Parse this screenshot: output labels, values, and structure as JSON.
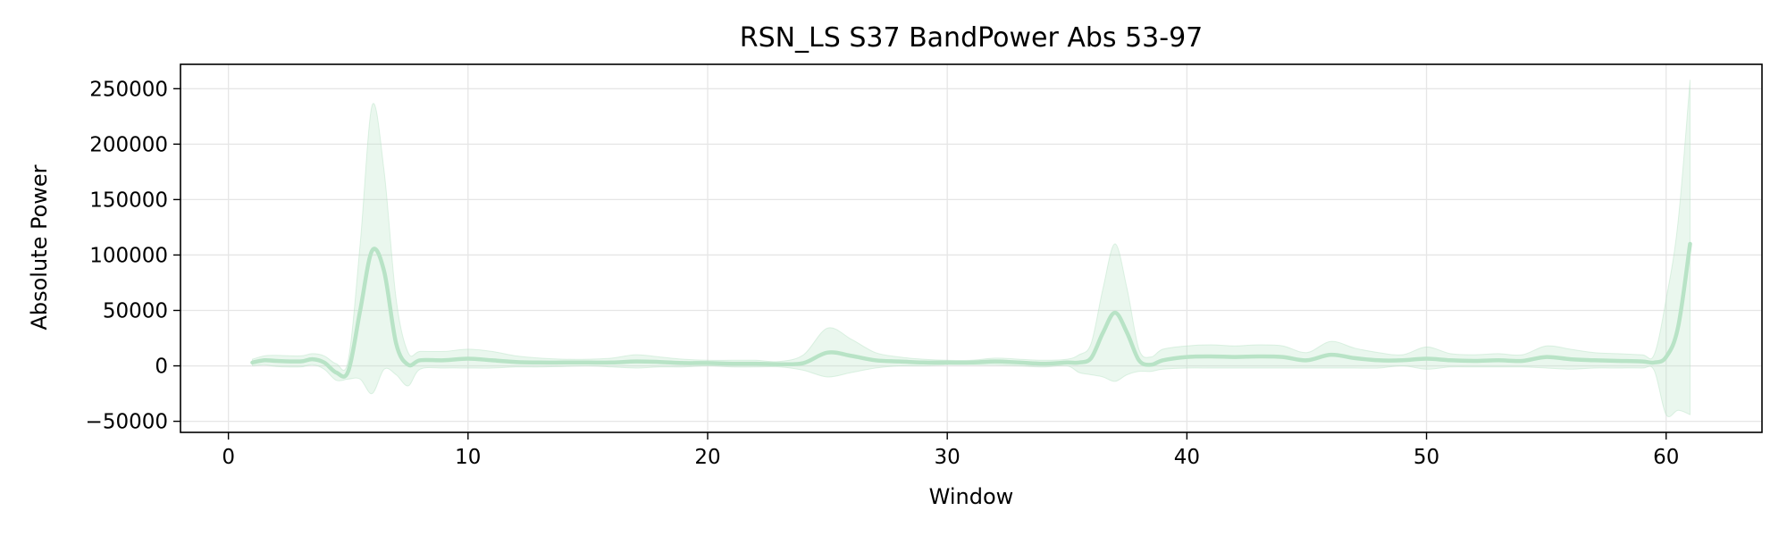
{
  "chart_data": {
    "type": "line",
    "title": "RSN_LS S37 BandPower Abs 53-97",
    "xlabel": "Window",
    "ylabel": "Absolute Power",
    "xlim": [
      -2,
      64
    ],
    "ylim": [
      -60000,
      272000
    ],
    "xticks": [
      0,
      10,
      20,
      30,
      40,
      50,
      60
    ],
    "xtick_labels": [
      "0",
      "10",
      "20",
      "30",
      "40",
      "50",
      "60"
    ],
    "yticks": [
      -50000,
      0,
      50000,
      100000,
      150000,
      200000,
      250000
    ],
    "ytick_labels": [
      "−50000",
      "0",
      "50000",
      "100000",
      "150000",
      "200000",
      "250000"
    ],
    "grid": true,
    "legend": false,
    "series": [
      {
        "color": "#b8e3c6",
        "band_color": "#b8e3c6",
        "x": [
          1,
          1.5,
          2,
          3,
          3.5,
          4,
          4.5,
          5,
          5.5,
          6,
          6.5,
          7,
          7.5,
          8,
          9,
          10,
          11,
          12,
          13,
          14,
          15,
          16,
          17,
          18,
          19,
          20,
          21,
          22,
          23,
          24,
          25,
          26,
          27,
          28,
          29,
          30,
          31,
          32,
          33,
          34,
          35,
          35.5,
          36,
          36.5,
          37,
          37.5,
          38,
          38.5,
          39,
          40,
          41,
          42,
          43,
          44,
          45,
          46,
          47,
          48,
          49,
          50,
          51,
          52,
          53,
          54,
          55,
          56,
          57,
          58,
          59,
          59.5,
          60,
          60.5,
          61
        ],
        "mean": [
          3000,
          5000,
          4500,
          4000,
          6000,
          3000,
          -6000,
          -5000,
          50000,
          104000,
          85000,
          20000,
          1000,
          5000,
          5000,
          6500,
          5000,
          3500,
          3000,
          3000,
          3000,
          3000,
          4000,
          3500,
          2500,
          2500,
          2000,
          2000,
          1500,
          2500,
          12000,
          9000,
          5000,
          4000,
          3000,
          3000,
          3000,
          4000,
          3000,
          2000,
          3000,
          3000,
          7000,
          30000,
          48000,
          30000,
          5000,
          1000,
          5000,
          8000,
          8500,
          8000,
          8500,
          8000,
          5000,
          10000,
          7000,
          5000,
          5000,
          6500,
          5000,
          4500,
          5000,
          4500,
          8000,
          6000,
          5000,
          4500,
          4000,
          3000,
          8000,
          35000,
          110000
        ],
        "upper": [
          6000,
          9000,
          9500,
          9000,
          11000,
          9000,
          2000,
          5000,
          110000,
          235000,
          175000,
          60000,
          12000,
          13000,
          13000,
          15000,
          13000,
          9000,
          7000,
          6000,
          6000,
          7000,
          10000,
          8000,
          6000,
          5000,
          5000,
          5000,
          4000,
          10000,
          34000,
          24000,
          12000,
          8000,
          6000,
          5000,
          5000,
          7000,
          6000,
          5000,
          6000,
          10000,
          20000,
          70000,
          110000,
          70000,
          15000,
          8000,
          15000,
          18000,
          19000,
          18000,
          19000,
          18000,
          12000,
          22000,
          16000,
          12000,
          10000,
          17000,
          11000,
          10000,
          11000,
          10000,
          18000,
          15000,
          12000,
          11000,
          10000,
          10000,
          60000,
          130000,
          258000
        ],
        "lower": [
          0,
          1000,
          -500,
          -1000,
          1000,
          -3000,
          -13000,
          -12000,
          -12000,
          -25000,
          -3000,
          -8000,
          -18000,
          -3000,
          -2000,
          -2000,
          -2000,
          -1000,
          -1000,
          -500,
          0,
          -1000,
          -2000,
          -1000,
          -1000,
          0,
          -1000,
          -1000,
          -1000,
          -4000,
          -10000,
          -6000,
          -2000,
          0,
          0,
          1000,
          1000,
          1000,
          0,
          -1000,
          0,
          -6000,
          -8000,
          -10000,
          -14000,
          -8000,
          -5000,
          -5000,
          -3000,
          -2000,
          -2000,
          -2000,
          -2000,
          -2000,
          -2000,
          -2000,
          -2000,
          -2000,
          0,
          -3000,
          -1000,
          -1000,
          -1000,
          -1000,
          -2000,
          -3000,
          -2000,
          -2000,
          -2000,
          -4000,
          -44000,
          -40000,
          -44000
        ]
      }
    ]
  }
}
